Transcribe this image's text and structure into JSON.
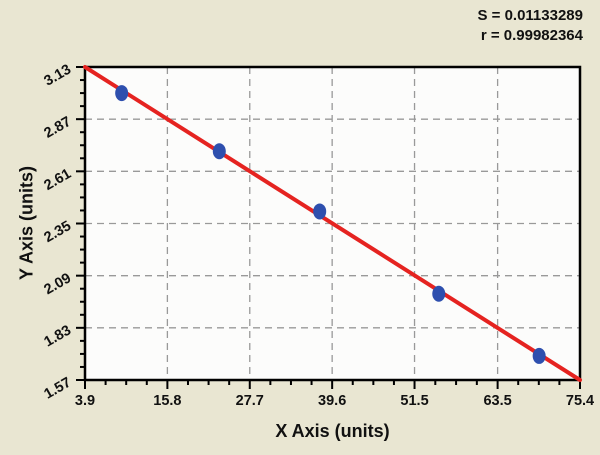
{
  "stats": {
    "s_line": "S = 0.01133289",
    "r_line": "r = 0.99982364"
  },
  "axis_titles": {
    "x": "X Axis (units)",
    "y": "Y Axis (units)"
  },
  "chart_data": {
    "type": "scatter",
    "title": "",
    "xlabel": "X Axis (units)",
    "ylabel": "Y Axis (units)",
    "xlim": [
      3.9,
      75.4
    ],
    "ylim": [
      1.57,
      3.13
    ],
    "x_ticks": [
      3.9,
      15.8,
      27.7,
      39.6,
      51.5,
      63.5,
      75.4
    ],
    "x_tick_labels": [
      "3.9",
      "15.8",
      "27.7",
      "39.6",
      "51.5",
      "63.5",
      "75.4"
    ],
    "y_ticks": [
      3.13,
      2.87,
      2.61,
      2.35,
      2.09,
      1.83,
      1.57
    ],
    "y_tick_labels": [
      "3.13",
      "2.87",
      "2.61",
      "2.35",
      "2.09",
      "1.83",
      "1.57"
    ],
    "minor_ticks_between_majors": 3,
    "grid": true,
    "legend": "none",
    "points": [
      {
        "x": 9.2,
        "y": 3.0
      },
      {
        "x": 23.3,
        "y": 2.71
      },
      {
        "x": 37.8,
        "y": 2.41
      },
      {
        "x": 55.0,
        "y": 2.0
      },
      {
        "x": 69.5,
        "y": 1.69
      }
    ],
    "fit_line": {
      "x1": 3.9,
      "y1": 3.13,
      "x2": 75.4,
      "y2": 1.57
    },
    "annotations": {
      "S": "0.01133289",
      "r": "0.99982364"
    },
    "colors": {
      "background": "#e9e6d2",
      "plot_background": "#fcfcfb",
      "frame": "#000000",
      "grid": "#999999",
      "fit_line": "#e52320",
      "point_fill": "#2e4fae",
      "text": "#111111"
    }
  }
}
